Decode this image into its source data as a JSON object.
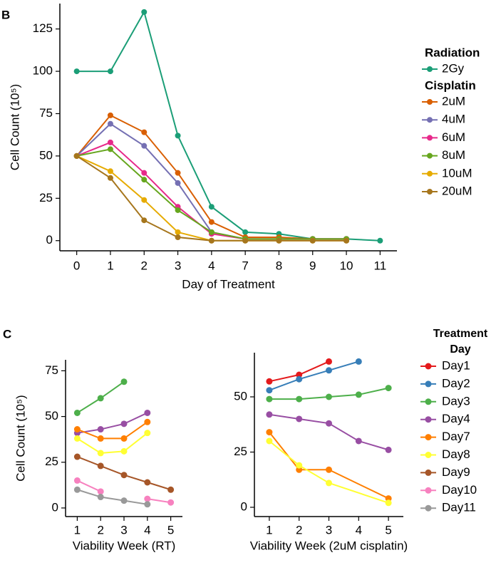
{
  "chart_data": [
    {
      "type": "line",
      "panel": "B",
      "ylabel": "Cell Count (10⁵)",
      "xlabel": "Day of Treatment",
      "categories": [
        "0",
        "1",
        "2",
        "3",
        "4",
        "7",
        "8",
        "9",
        "10",
        "11"
      ],
      "ylim": [
        -6,
        140
      ],
      "yticks": [
        0,
        25,
        50,
        75,
        100,
        125
      ],
      "series": [
        {
          "name": "2Gy",
          "legend_group": "Radiation",
          "color": "#1b9e77",
          "values": [
            100,
            100,
            135,
            62,
            20,
            5,
            4,
            1,
            1,
            0
          ]
        },
        {
          "name": "2uM",
          "legend_group": "Cisplatin",
          "color": "#d95f02",
          "values": [
            50,
            74,
            64,
            40,
            11,
            2,
            2,
            1,
            1,
            null
          ]
        },
        {
          "name": "4uM",
          "color": "#7570b3",
          "values": [
            50,
            69,
            56,
            34,
            5,
            1,
            1,
            1,
            1,
            null
          ]
        },
        {
          "name": "6uM",
          "color": "#e7298a",
          "values": [
            50,
            58,
            40,
            20,
            4,
            1,
            1,
            1,
            1,
            null
          ]
        },
        {
          "name": "8uM",
          "color": "#66a61e",
          "values": [
            50,
            54,
            36,
            18,
            5,
            1,
            1,
            1,
            1,
            null
          ]
        },
        {
          "name": "10uM",
          "color": "#e6ab02",
          "values": [
            50,
            41,
            24,
            5,
            0,
            0,
            0,
            0,
            0,
            null
          ]
        },
        {
          "name": "20uM",
          "color": "#a6761d",
          "values": [
            50,
            37,
            12,
            2,
            0,
            0,
            0,
            0,
            0,
            null
          ]
        }
      ]
    },
    {
      "type": "line",
      "panel": "C",
      "ylabel": "Cell Count (10⁵)",
      "xlabel": "Viability Week (RT)",
      "xlim": [
        0.5,
        5.5
      ],
      "xticks": [
        1,
        2,
        3,
        4,
        5
      ],
      "ylim": [
        -4.7,
        81
      ],
      "yticks": [
        0,
        25,
        50,
        75
      ],
      "series": [
        {
          "name": "Day3",
          "color": "#4daf4a",
          "x": [
            1,
            2,
            3
          ],
          "values": [
            52,
            60,
            69
          ]
        },
        {
          "name": "Day4",
          "color": "#984ea3",
          "x": [
            1,
            2,
            3,
            4
          ],
          "values": [
            41,
            43,
            46,
            52
          ]
        },
        {
          "name": "Day7",
          "color": "#ff7f00",
          "x": [
            1,
            2,
            3,
            4
          ],
          "values": [
            43,
            38,
            38,
            47
          ]
        },
        {
          "name": "Day8",
          "color": "#ffff33",
          "x": [
            1,
            2,
            3,
            4
          ],
          "values": [
            38,
            30,
            31,
            41
          ]
        },
        {
          "name": "Day9",
          "color": "#a65628",
          "x": [
            1,
            2,
            3,
            4,
            5
          ],
          "values": [
            28,
            23,
            18,
            14,
            10
          ]
        },
        {
          "name": "Day10",
          "color": "#f781bf",
          "x": [
            1,
            2,
            3,
            4,
            5
          ],
          "values": [
            15,
            9,
            null,
            5,
            3
          ]
        },
        {
          "name": "Day11",
          "color": "#999999",
          "x": [
            1,
            2,
            3,
            4
          ],
          "values": [
            10,
            6,
            4,
            2
          ]
        }
      ]
    },
    {
      "type": "line",
      "xlabel": "Viability Week (2uM cisplatin)",
      "legend_title": "Treatment Day",
      "xlim": [
        0.5,
        5.5
      ],
      "xticks": [
        1,
        2,
        3,
        4,
        5
      ],
      "ylim": [
        -4.2,
        70
      ],
      "yticks": [
        0,
        25,
        50
      ],
      "series": [
        {
          "name": "Day1",
          "color": "#e41a1c",
          "x": [
            1,
            2,
            3
          ],
          "values": [
            57,
            60,
            66
          ]
        },
        {
          "name": "Day2",
          "color": "#377eb8",
          "x": [
            1,
            2,
            3,
            4
          ],
          "values": [
            53,
            58,
            62,
            66
          ]
        },
        {
          "name": "Day3",
          "color": "#4daf4a",
          "x": [
            1,
            2,
            3,
            4,
            5
          ],
          "values": [
            49,
            49,
            50,
            51,
            54
          ]
        },
        {
          "name": "Day4",
          "color": "#984ea3",
          "x": [
            1,
            2,
            3,
            4,
            5
          ],
          "values": [
            42,
            40,
            38,
            30,
            26
          ]
        },
        {
          "name": "Day7",
          "color": "#ff7f00",
          "x": [
            1,
            2,
            3,
            5
          ],
          "values": [
            34,
            17,
            17,
            4
          ]
        },
        {
          "name": "Day8",
          "color": "#ffff33",
          "x": [
            1,
            2,
            3,
            5
          ],
          "values": [
            30,
            19,
            11,
            2
          ]
        }
      ]
    }
  ]
}
